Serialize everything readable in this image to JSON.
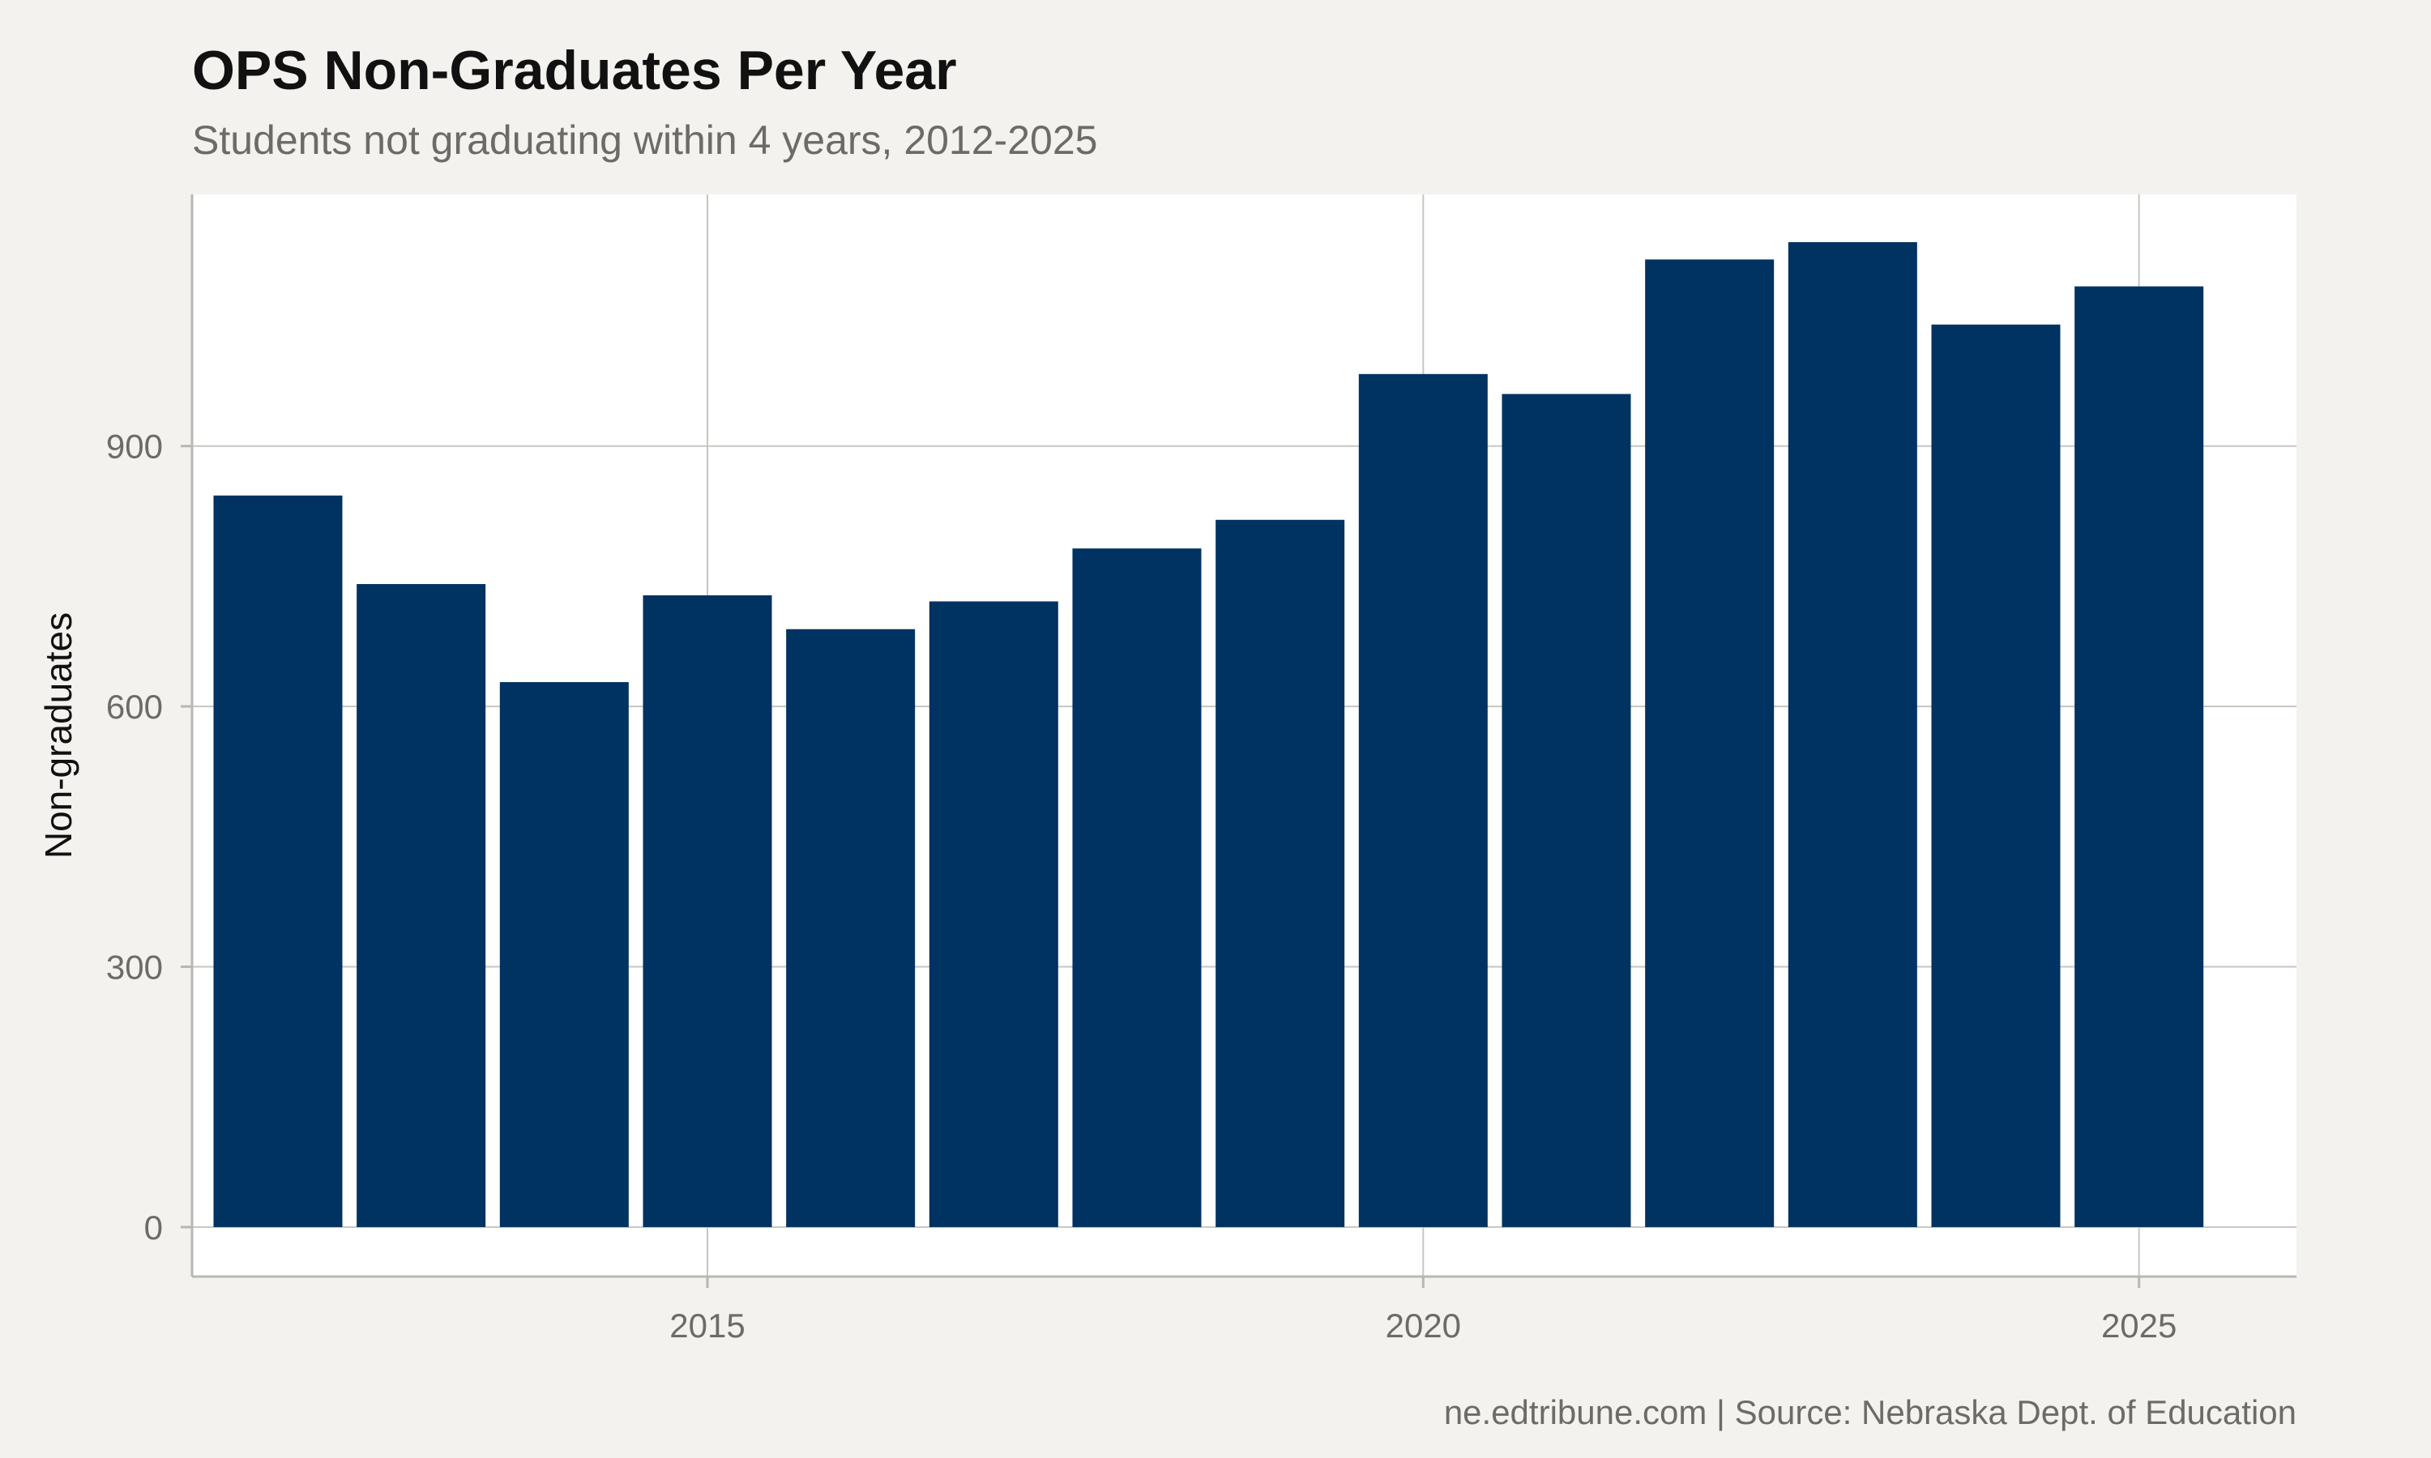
{
  "chart_data": {
    "type": "bar",
    "title": "OPS Non-Graduates Per Year",
    "subtitle": "Students not graduating within 4 years, 2012-2025",
    "xlabel": "",
    "ylabel": "Non-graduates",
    "caption": "ne.edtribune.com | Source: Nebraska Dept. of Education",
    "x": [
      2012,
      2013,
      2014,
      2015,
      2016,
      2017,
      2018,
      2019,
      2020,
      2021,
      2022,
      2023,
      2024,
      2025
    ],
    "values": [
      843,
      741,
      628,
      728,
      689,
      721,
      782,
      815,
      983,
      960,
      1115,
      1135,
      1040,
      1084
    ],
    "xlim": [
      2011.4,
      2026.1
    ],
    "ylim": [
      -57,
      1190
    ],
    "x_ticks": [
      2015,
      2020,
      2025
    ],
    "x_tick_labels": [
      "2015",
      "2020",
      "2025"
    ],
    "y_ticks": [
      0,
      300,
      600,
      900
    ],
    "y_tick_labels": [
      "0",
      "300",
      "600",
      "900"
    ],
    "grid": true,
    "legend": "none",
    "colors": {
      "bar": "#003262",
      "background": "#f4f2ee",
      "panel": "#ffffff",
      "grid": "#c8c6bf",
      "axis": "#b9b7b0"
    }
  }
}
